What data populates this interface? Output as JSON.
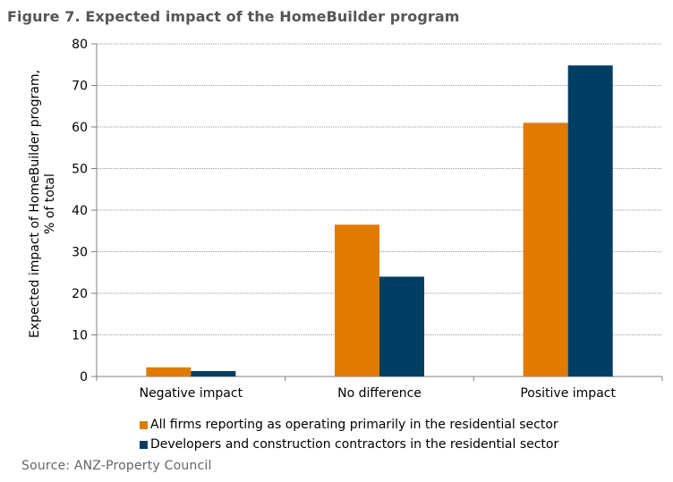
{
  "chart_data": {
    "type": "bar",
    "title": "Figure 7. Expected impact of the HomeBuilder program",
    "ylabel_line1": "Expected impact of HomeBuilder program,",
    "ylabel_line2": "% of total",
    "xlabel": "",
    "ylim": [
      0,
      80
    ],
    "yticks": [
      "0",
      "10",
      "20",
      "30",
      "40",
      "50",
      "60",
      "70",
      "80"
    ],
    "categories": [
      "Negative impact",
      "No difference",
      "Positive impact"
    ],
    "series": [
      {
        "name": "All firms reporting as operating primarily in the residential sector",
        "color": "#E07B00",
        "values": [
          2.2,
          36.5,
          61.0
        ]
      },
      {
        "name": "Developers and construction contractors in the residential sector",
        "color": "#003E63",
        "values": [
          1.3,
          24.0,
          74.8
        ]
      }
    ],
    "grid": true,
    "legend_position": "bottom"
  },
  "source": "Source: ANZ-Property Council"
}
